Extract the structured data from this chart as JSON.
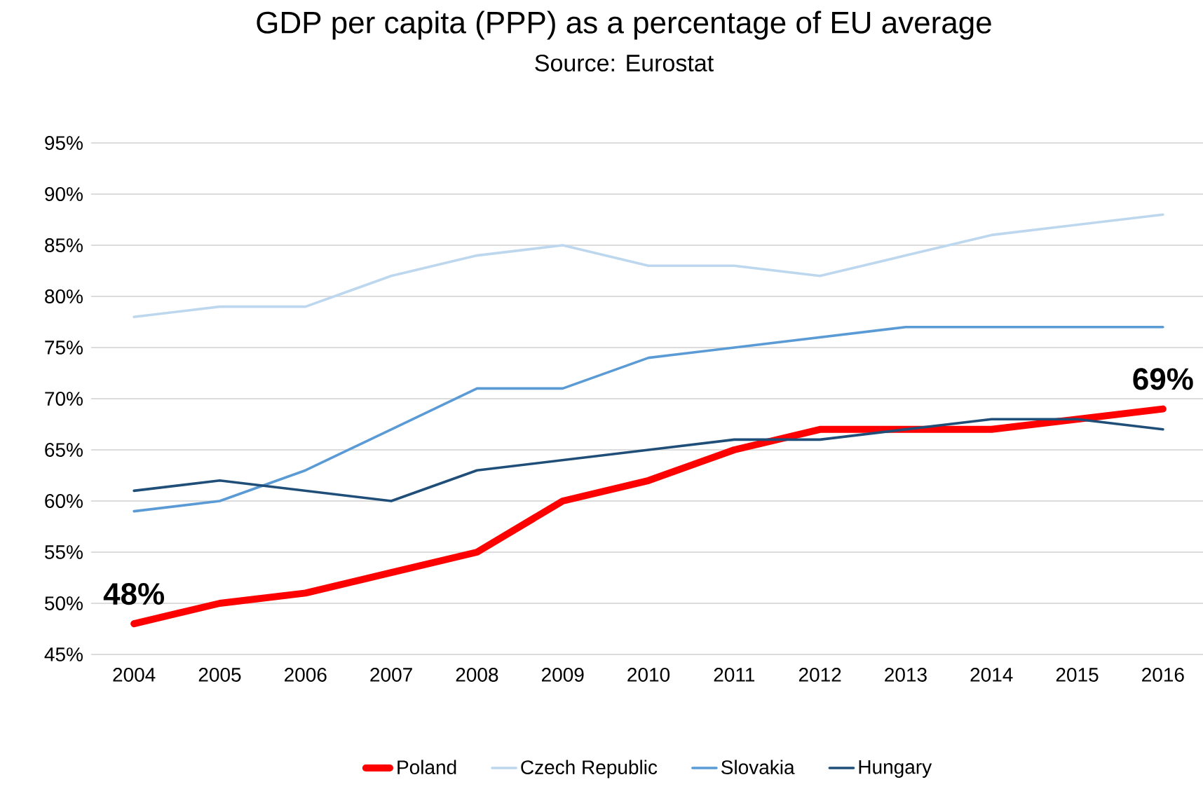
{
  "chart_data": {
    "type": "line",
    "title": "GDP per capita (PPP) as a percentage of EU average",
    "subtitle": "Source: Eurostat",
    "categories": [
      "2004",
      "2005",
      "2006",
      "2007",
      "2008",
      "2009",
      "2010",
      "2011",
      "2012",
      "2013",
      "2014",
      "2015",
      "2016"
    ],
    "series": [
      {
        "name": "Poland",
        "color": "#ff0000",
        "values": [
          48,
          50,
          51,
          53,
          55,
          60,
          62,
          65,
          67,
          67,
          67,
          68,
          69
        ]
      },
      {
        "name": "Czech Republic",
        "color": "#bdd7ee",
        "values": [
          78,
          79,
          79,
          82,
          84,
          85,
          83,
          83,
          82,
          84,
          86,
          87,
          88
        ]
      },
      {
        "name": "Slovakia",
        "color": "#5b9bd5",
        "values": [
          59,
          60,
          63,
          67,
          71,
          71,
          74,
          75,
          76,
          77,
          77,
          77,
          77
        ]
      },
      {
        "name": "Hungary",
        "color": "#1f4e79",
        "values": [
          61,
          62,
          61,
          60,
          63,
          64,
          65,
          66,
          66,
          67,
          68,
          68,
          67
        ]
      }
    ],
    "ylim": [
      45,
      95
    ],
    "yticks": [
      {
        "value": 45,
        "label": "45%"
      },
      {
        "value": 50,
        "label": "50%"
      },
      {
        "value": 55,
        "label": "55%"
      },
      {
        "value": 60,
        "label": "60%"
      },
      {
        "value": 65,
        "label": "65%"
      },
      {
        "value": 70,
        "label": "70%"
      },
      {
        "value": 75,
        "label": "75%"
      },
      {
        "value": 80,
        "label": "80%"
      },
      {
        "value": 85,
        "label": "85%"
      },
      {
        "value": 90,
        "label": "90%"
      },
      {
        "value": 95,
        "label": "95%"
      }
    ],
    "annotations": [
      {
        "text": "48%",
        "x": "2004",
        "y": 48
      },
      {
        "text": "69%",
        "x": "2016",
        "y": 69
      }
    ],
    "grid": "y",
    "legend": "bottom",
    "marker": "none",
    "line_style": "solid"
  }
}
